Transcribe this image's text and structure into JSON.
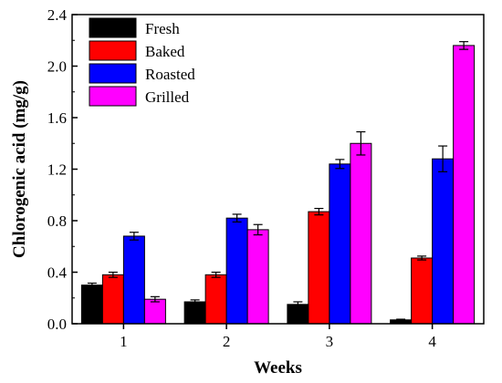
{
  "chart_data": {
    "type": "bar",
    "title": "",
    "xlabel": "Weeks",
    "ylabel": "Chlorogenic acid (mg/g)",
    "categories": [
      "1",
      "2",
      "3",
      "4"
    ],
    "ylim": [
      0,
      2.4
    ],
    "yticks": [
      0.0,
      0.4,
      0.8,
      1.2,
      1.6,
      2.0,
      2.4
    ],
    "ytick_labels": [
      "0.0",
      "0.4",
      "0.8",
      "1.2",
      "1.6",
      "2.0",
      "2.4"
    ],
    "grid": false,
    "legend_position": "top-left",
    "error_bars": true,
    "series": [
      {
        "name": "Fresh",
        "color": "#000000",
        "values": [
          0.3,
          0.17,
          0.15,
          0.03
        ],
        "errors": [
          0.015,
          0.015,
          0.02,
          0.005
        ]
      },
      {
        "name": "Baked",
        "color": "#ff0000",
        "values": [
          0.38,
          0.38,
          0.87,
          0.51
        ],
        "errors": [
          0.02,
          0.02,
          0.025,
          0.015
        ]
      },
      {
        "name": "Roasted",
        "color": "#0000ff",
        "values": [
          0.68,
          0.82,
          1.24,
          1.28
        ],
        "errors": [
          0.03,
          0.03,
          0.035,
          0.1
        ]
      },
      {
        "name": "Grilled",
        "color": "#ff00ff",
        "values": [
          0.19,
          0.73,
          1.4,
          2.16
        ],
        "errors": [
          0.02,
          0.04,
          0.09,
          0.03
        ]
      }
    ]
  }
}
